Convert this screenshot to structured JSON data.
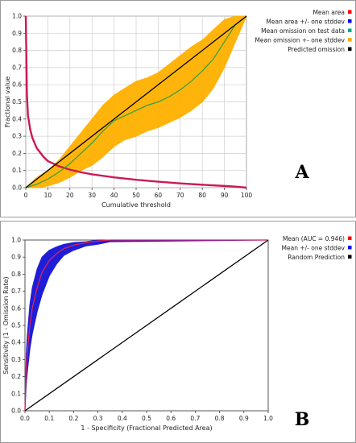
{
  "chart_data": [
    {
      "panel": "A",
      "type": "line",
      "xlabel": "Cumulative threshold",
      "ylabel": "Fractional value",
      "xlim": [
        0,
        100
      ],
      "ylim": [
        0,
        1.0
      ],
      "xticks": [
        0,
        10,
        20,
        30,
        40,
        50,
        60,
        70,
        80,
        90,
        100
      ],
      "yticks": [
        0.0,
        0.1,
        0.2,
        0.3,
        0.4,
        0.5,
        0.6,
        0.7,
        0.8,
        0.9,
        1.0
      ],
      "grid": true,
      "legend_position": "top-right",
      "legend": [
        {
          "name": "Mean area",
          "color": "#ff0000"
        },
        {
          "name": "Mean area +/- one stddev",
          "color": "#0000ff"
        },
        {
          "name": "Mean omission on test data",
          "color": "#00aa88"
        },
        {
          "name": "Mean omission +- one stddev",
          "color": "#ffaa00"
        },
        {
          "name": "Predicted omission",
          "color": "#000000"
        }
      ],
      "series": [
        {
          "name": "Mean area",
          "color": "#cc1a55",
          "x": [
            0,
            0.5,
            1,
            2,
            3,
            5,
            8,
            10,
            15,
            20,
            25,
            30,
            40,
            50,
            60,
            70,
            80,
            90,
            95,
            100
          ],
          "y": [
            1.0,
            0.55,
            0.42,
            0.34,
            0.29,
            0.23,
            0.18,
            0.155,
            0.125,
            0.105,
            0.09,
            0.078,
            0.06,
            0.046,
            0.035,
            0.025,
            0.017,
            0.01,
            0.006,
            0.0
          ]
        },
        {
          "name": "Mean omission on test data",
          "color": "#3aa13a",
          "x": [
            0,
            5,
            10,
            15,
            20,
            25,
            30,
            35,
            40,
            45,
            50,
            55,
            60,
            65,
            70,
            75,
            80,
            85,
            90,
            95,
            100
          ],
          "y": [
            0.0,
            0.02,
            0.05,
            0.09,
            0.14,
            0.2,
            0.26,
            0.33,
            0.39,
            0.42,
            0.45,
            0.48,
            0.5,
            0.53,
            0.57,
            0.62,
            0.68,
            0.75,
            0.85,
            0.95,
            1.0
          ],
          "band_upper": [
            0.0,
            0.06,
            0.1,
            0.16,
            0.24,
            0.32,
            0.4,
            0.48,
            0.54,
            0.58,
            0.62,
            0.64,
            0.67,
            0.72,
            0.77,
            0.82,
            0.86,
            0.92,
            0.98,
            1.0,
            1.0
          ],
          "band_lower": [
            0.0,
            0.0,
            0.01,
            0.03,
            0.06,
            0.1,
            0.13,
            0.18,
            0.24,
            0.28,
            0.3,
            0.33,
            0.35,
            0.38,
            0.41,
            0.45,
            0.5,
            0.58,
            0.7,
            0.85,
            1.0
          ]
        },
        {
          "name": "Predicted omission",
          "color": "#000000",
          "x": [
            0,
            100
          ],
          "y": [
            0,
            1
          ]
        }
      ],
      "annotation": "A"
    },
    {
      "panel": "B",
      "type": "line",
      "xlabel": "1 - Specificity (Fractional Predicted Area)",
      "ylabel": "Sensitivity (1 - Omission Rate)",
      "xlim": [
        0,
        1.0
      ],
      "ylim": [
        0,
        1.0
      ],
      "xticks": [
        0.0,
        0.1,
        0.2,
        0.3,
        0.4,
        0.5,
        0.6,
        0.7,
        0.8,
        0.9,
        1.0
      ],
      "yticks": [
        0.0,
        0.1,
        0.2,
        0.3,
        0.4,
        0.5,
        0.6,
        0.7,
        0.8,
        0.9,
        1.0
      ],
      "grid": false,
      "legend_position": "right",
      "legend": [
        {
          "name": "Mean (AUC = 0.946)",
          "color": "#ff0000"
        },
        {
          "name": "Mean +/- one stddev",
          "color": "#0000ff"
        },
        {
          "name": "Random Prediction",
          "color": "#000000"
        }
      ],
      "series": [
        {
          "name": "Mean (AUC = 0.946)",
          "color": "#dd2255",
          "x": [
            0.0,
            0.005,
            0.01,
            0.02,
            0.03,
            0.05,
            0.07,
            0.1,
            0.13,
            0.16,
            0.2,
            0.25,
            0.3,
            0.35,
            1.0
          ],
          "y": [
            0.0,
            0.25,
            0.35,
            0.5,
            0.6,
            0.72,
            0.81,
            0.88,
            0.92,
            0.95,
            0.97,
            0.985,
            0.995,
            1.0,
            1.0
          ],
          "band_upper": [
            0.0,
            0.33,
            0.45,
            0.62,
            0.72,
            0.83,
            0.9,
            0.94,
            0.96,
            0.975,
            0.985,
            0.99,
            1.0,
            1.0,
            1.0
          ],
          "band_lower": [
            0.0,
            0.15,
            0.23,
            0.36,
            0.45,
            0.58,
            0.68,
            0.79,
            0.86,
            0.91,
            0.94,
            0.965,
            0.975,
            0.99,
            1.0
          ]
        },
        {
          "name": "Random Prediction",
          "color": "#000000",
          "x": [
            0,
            1
          ],
          "y": [
            0,
            1
          ]
        }
      ],
      "annotation": "B"
    }
  ]
}
